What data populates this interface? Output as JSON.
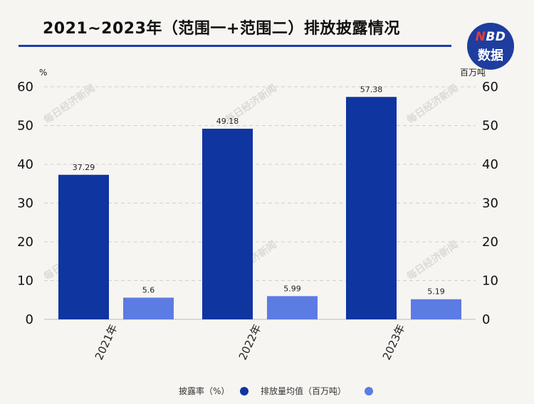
{
  "title": "2021~2023年（范围一+范围二）排放披露情况",
  "logo": {
    "top_n": "N",
    "top_rest": "BD",
    "bottom": "数据"
  },
  "watermark": "每日经济新闻",
  "colors": {
    "disclosure": "#0e35a0",
    "emission": "#5c7be3",
    "title_rule": "#1d3ea8",
    "logo_bg": "#1f3d9f"
  },
  "chart_data": {
    "type": "bar",
    "categories": [
      "2021年",
      "2022年",
      "2023年"
    ],
    "series": [
      {
        "name": "披露率（%）",
        "values": [
          37.29,
          49.18,
          57.38
        ],
        "axis": "left"
      },
      {
        "name": "排放量均值（百万吨）",
        "values": [
          5.6,
          5.99,
          5.19
        ],
        "axis": "right"
      }
    ],
    "y_left": {
      "unit": "%",
      "ylim": [
        0,
        60
      ],
      "ticks": [
        0,
        10,
        20,
        30,
        40,
        50,
        60
      ]
    },
    "y_right": {
      "unit": "百万吨",
      "ylim": [
        0,
        60
      ],
      "ticks": [
        0,
        10,
        20,
        30,
        40,
        50,
        60
      ]
    },
    "grid": true,
    "legend_position": "bottom"
  }
}
